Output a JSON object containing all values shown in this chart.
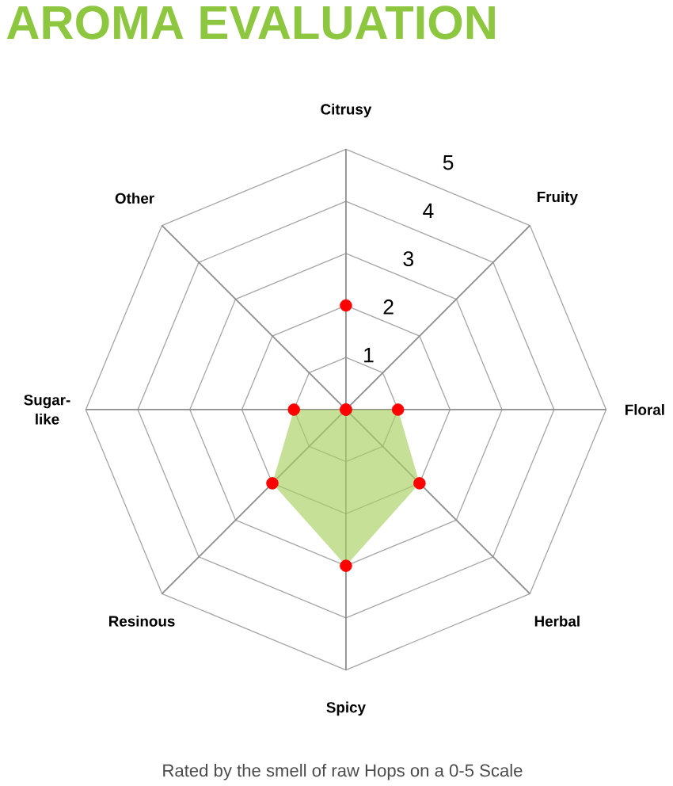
{
  "chart_data": {
    "type": "radar",
    "title": "AROMA EVALUATION",
    "annotations": [
      "Rated by the smell of raw Hops on a 0-5 Scale"
    ],
    "categories": [
      "Citrusy",
      "Fruity",
      "Floral",
      "Herbal",
      "Spicy",
      "Resinous",
      "Sugar-like",
      "Other"
    ],
    "series": [
      {
        "color": "#a8d060",
        "values": [
          2,
          0,
          1,
          2,
          3,
          2,
          1,
          0
        ]
      }
    ],
    "ylim": [
      0,
      5
    ],
    "yticks": [
      1,
      2,
      3,
      4,
      5
    ],
    "grid": true,
    "marker": "circle"
  }
}
